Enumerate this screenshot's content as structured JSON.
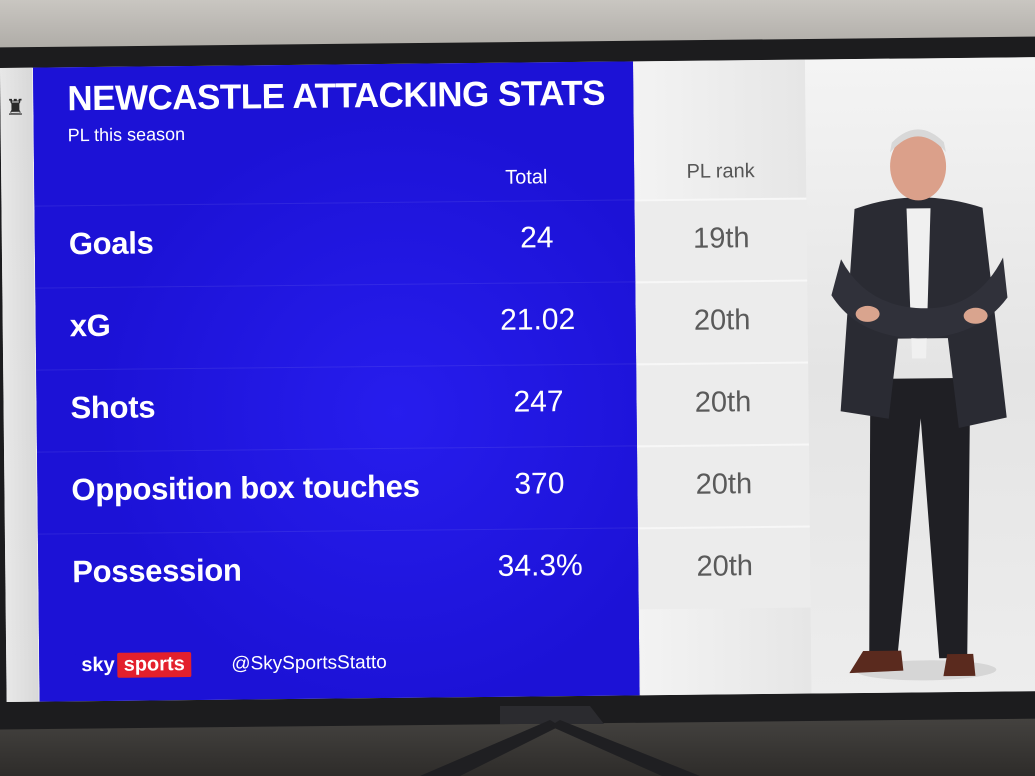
{
  "graphic": {
    "title": "NEWCASTLE ATTACKING STATS",
    "subtitle": "PL this season",
    "col_total": "Total",
    "col_rank": "PL rank"
  },
  "rows": [
    {
      "label": "Goals",
      "total": "24",
      "rank": "19th"
    },
    {
      "label": "xG",
      "total": "21.02",
      "rank": "20th"
    },
    {
      "label": "Shots",
      "total": "247",
      "rank": "20th"
    },
    {
      "label": "Opposition box touches",
      "total": "370",
      "rank": "20th"
    },
    {
      "label": "Possession",
      "total": "34.3%",
      "rank": "20th"
    }
  ],
  "footer": {
    "logo_sky": "sky",
    "logo_sports": "sports",
    "handle": "@SkySportsStatto"
  },
  "colors": {
    "panel_blue": "#1c12d6",
    "sky_red": "#e3202c"
  },
  "icons": {
    "crest": "newcastle-crest-icon"
  }
}
